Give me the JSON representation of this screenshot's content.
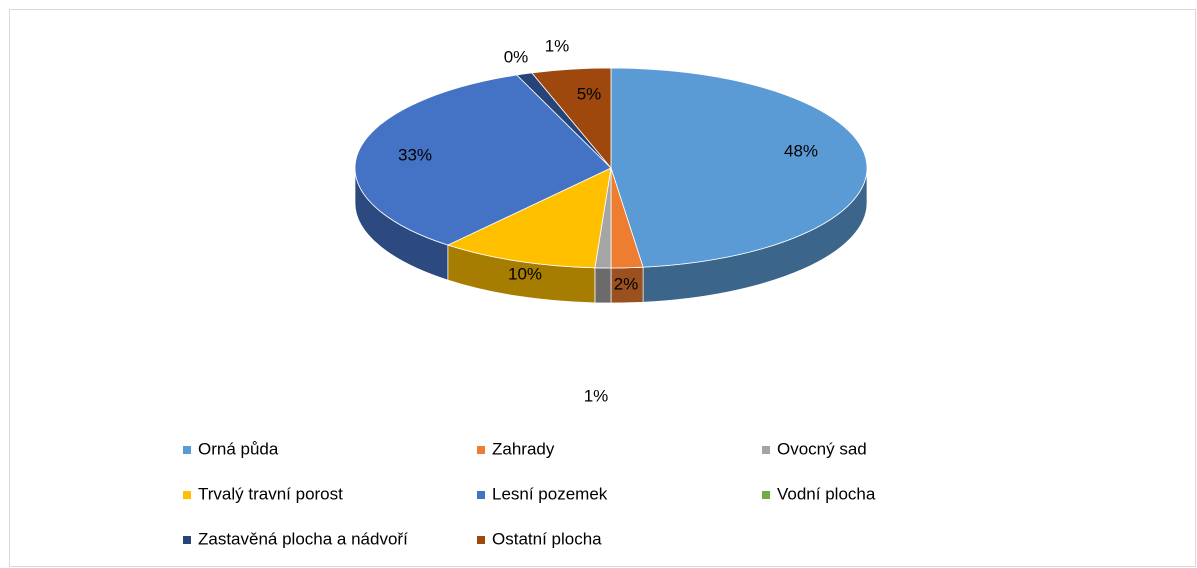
{
  "chart_data": {
    "type": "pie3d",
    "categories": [
      "Orná půda",
      "Zahrady",
      "Ovocný sad",
      "Trvalý travní porost",
      "Lesní pozemek",
      "Vodní plocha",
      "Zastavěná plocha a nádvoří",
      "Ostatní plocha"
    ],
    "values": [
      48,
      2,
      1,
      10,
      33,
      0,
      1,
      5
    ],
    "value_labels": [
      "48%",
      "2%",
      "1%",
      "10%",
      "33%",
      "0%",
      "1%",
      "5%"
    ],
    "colors": [
      "#5B9BD5",
      "#ED7D31",
      "#A5A5A5",
      "#FFC000",
      "#4472C4",
      "#70AD47",
      "#264478",
      "#9E480E"
    ],
    "legend": "bottom"
  }
}
